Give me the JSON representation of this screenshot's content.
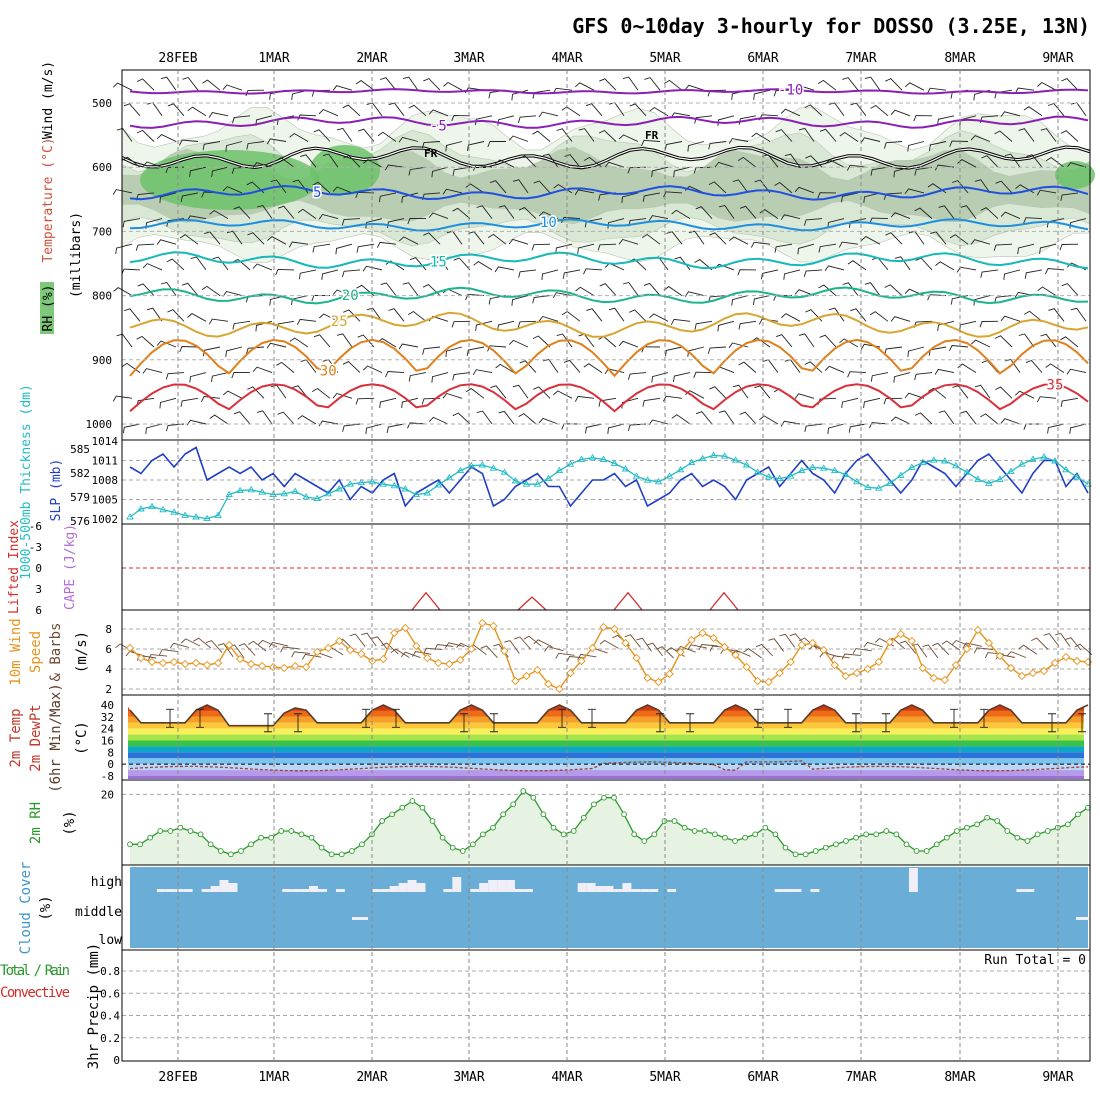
{
  "title": "GFS 0~10day 3-hourly for DOSSO (3.25E, 13N)",
  "dates": [
    "28FEB",
    "1MAR",
    "2MAR",
    "3MAR",
    "4MAR",
    "5MAR",
    "6MAR",
    "7MAR",
    "8MAR",
    "9MAR"
  ],
  "colors": {
    "slp": "#1f3fc7",
    "thickness": "#22bcc4",
    "lifted_index": "#d62c2c",
    "cape": "#b56cd6",
    "wind": "#e8931c",
    "barb": "#6e4a32",
    "rh2m": "#2c9a2c",
    "rh_fill": "#e6f2e2",
    "cloud": "#6aadd6",
    "cloud_bar": "#f0eef6",
    "temp_line": "#5a3b2a",
    "dewpt": "#a04040"
  },
  "panels": {
    "upper": {
      "ylabel_rh": "RH (%)",
      "ylabel_temp": "Temperature (°C)",
      "ylabel_wind": "Wind (m/s)",
      "ylabel_mb": "(millibars)",
      "yticks": [
        500,
        600,
        700,
        800,
        900,
        1000
      ],
      "freeze_label": "FR",
      "temp_contours": [
        {
          "label": "-10",
          "color": "#8a1fb5",
          "base": 482,
          "amp": 4
        },
        {
          "label": "-5",
          "color": "#8a1fb5",
          "base": 530,
          "amp": 10
        },
        {
          "label": "5",
          "color": "#2050e0",
          "base": 640,
          "amp": 12
        },
        {
          "label": "10",
          "color": "#1e8fe0",
          "base": 690,
          "amp": 10
        },
        {
          "label": "15",
          "color": "#15b9b9",
          "base": 745,
          "amp": 14
        },
        {
          "label": "20",
          "color": "#1ab58e",
          "base": 800,
          "amp": 14
        },
        {
          "label": "25",
          "color": "#d8a531",
          "base": 845,
          "amp": 22
        },
        {
          "label": "30",
          "color": "#e0801c",
          "base": 905,
          "amp": 40
        },
        {
          "label": "35",
          "color": "#d9303c",
          "base": 965,
          "amp": 30
        }
      ]
    },
    "slp": {
      "ylabel_thick": "1000-500mb Thickness (dm)",
      "ylabel_slp": "SLP (mb)",
      "left_ticks": [
        "585",
        "582",
        "579",
        "576"
      ],
      "right_ticks": [
        "1014",
        "1011",
        "1008",
        "1005",
        "1002"
      ],
      "slp_values": [
        1010,
        1009,
        1011,
        1012,
        1010,
        1012,
        1013,
        1008,
        1009,
        1010,
        1009,
        1010,
        1008,
        1009,
        1007,
        1009,
        1008,
        1007,
        1006,
        1008,
        1005,
        1007,
        1006,
        1008,
        1009,
        1004,
        1006,
        1007,
        1008,
        1006,
        1008,
        1010,
        1009,
        1004,
        1005,
        1007,
        1008,
        1009,
        1007,
        1007,
        1004,
        1006,
        1008,
        1008,
        1009,
        1007,
        1008,
        1004,
        1005,
        1006,
        1008,
        1009,
        1007,
        1008,
        1007,
        1005,
        1008,
        1009,
        1010,
        1007,
        1009,
        1011,
        1009,
        1008,
        1006,
        1009,
        1011,
        1012,
        1010,
        1008,
        1006,
        1008,
        1011,
        1010,
        1009,
        1007,
        1009,
        1011,
        1012,
        1010,
        1008,
        1006,
        1009,
        1011,
        1011,
        1007,
        1009,
        1006
      ],
      "thick_values": [
        576.5,
        577.5,
        577.8,
        577.4,
        577.1,
        576.7,
        576.5,
        576.3,
        576.7,
        579.3,
        579.8,
        579.9,
        579.6,
        579.3,
        579.4,
        579.7,
        579.0,
        578.8,
        579.4,
        580.0,
        580.6,
        580.8,
        580.9,
        580.6,
        580.4,
        580.0,
        579.3,
        579.5,
        580.5,
        581.4,
        582.3,
        582.9,
        583.0,
        582.6,
        582.1,
        581.0,
        580.6,
        580.6,
        581.3,
        582.3,
        583.1,
        583.7,
        583.9,
        583.7,
        583.2,
        582.5,
        581.6,
        581.1,
        580.9,
        581.6,
        582.4,
        583.3,
        583.8,
        584.2,
        584.1,
        583.6,
        583.0,
        582.1,
        581.5,
        581.3,
        581.6,
        582.3,
        582.7,
        582.6,
        582.3,
        581.8,
        580.9,
        580.2,
        580.1,
        580.7,
        581.7,
        582.7,
        583.3,
        583.6,
        583.5,
        582.9,
        582.1,
        581.2,
        580.7,
        581.2,
        582.2,
        583.1,
        583.7,
        584.0,
        583.5,
        582.4,
        581.5,
        580.6
      ]
    },
    "cape": {
      "ylabel_li": "Lifted Index",
      "ylabel_cape": "CAPE (J/kg)",
      "ticks": [
        "-6",
        "-3",
        "0",
        "3",
        "6"
      ]
    },
    "wind10m": {
      "ylabel_a": "10m Wind",
      "ylabel_b": "Speed",
      "ylabel_c": "(m/s)",
      "ylabel_d": "& Barbs",
      "ticks": [
        "8",
        "6",
        "4",
        "2"
      ],
      "speed_values": [
        6.1,
        5.1,
        4.7,
        4.6,
        4.7,
        4.5,
        4.6,
        4.4,
        4.6,
        6.4,
        5.0,
        4.5,
        4.3,
        4.2,
        4.1,
        4.3,
        4.2,
        5.7,
        6.1,
        6.8,
        5.9,
        5.5,
        4.8,
        5.0,
        7.6,
        8.1,
        6.3,
        5.1,
        4.6,
        4.5,
        4.9,
        6.0,
        8.6,
        8.3,
        5.8,
        2.8,
        3.3,
        3.9,
        2.5,
        2.0,
        3.6,
        4.8,
        6.1,
        8.2,
        8.0,
        6.6,
        5.1,
        3.1,
        2.7,
        3.5,
        5.7,
        6.9,
        7.6,
        7.1,
        6.2,
        5.4,
        4.2,
        2.8,
        2.7,
        3.6,
        4.7,
        6.4,
        6.6,
        5.9,
        4.4,
        3.3,
        3.6,
        4.0,
        4.7,
        6.7,
        7.5,
        6.8,
        4.1,
        3.1,
        2.9,
        4.4,
        6.0,
        7.9,
        6.6,
        5.3,
        4.1,
        3.3,
        3.6,
        3.8,
        4.6,
        5.2,
        4.8,
        4.7
      ]
    },
    "temp2m": {
      "ylabel_a": "2m Temp",
      "ylabel_b": "2m DewPt",
      "ylabel_c": "(6hr Min/Max)",
      "ylabel_d": "(°C)",
      "ticks": [
        "40",
        "32",
        "24",
        "16",
        "8",
        "0",
        "-8"
      ],
      "color_bands": [
        {
          "from": 40,
          "to": 44,
          "color": "#a00f14"
        },
        {
          "from": 36,
          "to": 40,
          "color": "#d23a10"
        },
        {
          "from": 32,
          "to": 36,
          "color": "#ee6a14"
        },
        {
          "from": 28,
          "to": 32,
          "color": "#f59e28"
        },
        {
          "from": 24,
          "to": 28,
          "color": "#fbc83a"
        },
        {
          "from": 20,
          "to": 24,
          "color": "#f8f05a"
        },
        {
          "from": 16,
          "to": 20,
          "color": "#a7e34a"
        },
        {
          "from": 12,
          "to": 16,
          "color": "#39c24a"
        },
        {
          "from": 8,
          "to": 12,
          "color": "#0ea6c8"
        },
        {
          "from": 4,
          "to": 8,
          "color": "#2c73d8"
        },
        {
          "from": 0,
          "to": 4,
          "color": "#7cc4f0"
        },
        {
          "from": -4,
          "to": 0,
          "color": "#bcd6f6"
        },
        {
          "from": -8,
          "to": -4,
          "color": "#b49ae8"
        },
        {
          "from": -12,
          "to": -8,
          "color": "#9a72d6"
        }
      ]
    },
    "rh2m": {
      "ylabel_a": "2m RH",
      "ylabel_b": "(%)",
      "ticks": [
        "20"
      ],
      "values": [
        5,
        5,
        7,
        9,
        9,
        10,
        9,
        8,
        5,
        3,
        2,
        3,
        5,
        7,
        7,
        9,
        9,
        8,
        7,
        4,
        2,
        2,
        3,
        5,
        8,
        12,
        14,
        16,
        18,
        16,
        12,
        7,
        4,
        3,
        5,
        8,
        10,
        14,
        17,
        21,
        19,
        14,
        10,
        8,
        9,
        13,
        17,
        19,
        19,
        14,
        8,
        6,
        8,
        12,
        12,
        10,
        9,
        9,
        8,
        7,
        6,
        7,
        8,
        10,
        8,
        4,
        2,
        2,
        3,
        4,
        5,
        6,
        7,
        8,
        8,
        9,
        8,
        5,
        3,
        3,
        5,
        7,
        9,
        10,
        11,
        13,
        12,
        9,
        7,
        6,
        8,
        9,
        10,
        11,
        14,
        16
      ]
    },
    "cloud": {
      "ylabel_a": "Cloud Cover",
      "ylabel_b": "(%)",
      "levels": [
        "high",
        "middle",
        "low"
      ],
      "high_bars": [
        0,
        0,
        0,
        1,
        1,
        1,
        1,
        0,
        1,
        2,
        4,
        3,
        0,
        0,
        0,
        0,
        0,
        1,
        1,
        1,
        2,
        1,
        0,
        1,
        0,
        0,
        0,
        1,
        1,
        2,
        3,
        4,
        3,
        0,
        0,
        1,
        5,
        0,
        1,
        3,
        4,
        4,
        4,
        1,
        1,
        0,
        0,
        0,
        0,
        0,
        3,
        3,
        2,
        2,
        1,
        3,
        1,
        1,
        1,
        0,
        1,
        0,
        0,
        0,
        0,
        0,
        0,
        0,
        0,
        0,
        0,
        0,
        1,
        1,
        1,
        0,
        1,
        0,
        0,
        0,
        0,
        0,
        0,
        0,
        0,
        0,
        0,
        8,
        0,
        0,
        0,
        0,
        0,
        0,
        0,
        0,
        0,
        0,
        0,
        1,
        1,
        0,
        0,
        0,
        0,
        0,
        0
      ],
      "mid_bars_note": ""
    },
    "precip": {
      "ylabel_a": "Total / Rain",
      "ylabel_b": "Convective",
      "ylabel_c": "3hr Precip (mm)",
      "ticks": [
        "0.8",
        "0.6",
        "0.4",
        "0.2",
        "0"
      ],
      "run_total": "Run Total = 0"
    }
  },
  "chart_data": [
    {
      "type": "line",
      "title": "GFS 0~10day 3-hourly for DOSSO (3.25E, 13N)",
      "x": [
        "28FEB",
        "1MAR",
        "2MAR",
        "3MAR",
        "4MAR",
        "5MAR",
        "6MAR",
        "7MAR",
        "8MAR",
        "9MAR"
      ],
      "series": [
        {
          "name": "SLP (mb)",
          "range": [
            1002,
            1014
          ]
        },
        {
          "name": "1000-500mb Thickness (dm)",
          "range": [
            576,
            585
          ]
        },
        {
          "name": "10m Wind Speed (m/s)",
          "range": [
            2,
            8.6
          ]
        },
        {
          "name": "2m Temp (°C)",
          "range": [
            22,
            42
          ]
        },
        {
          "name": "2m RH (%)",
          "range": [
            2,
            21
          ]
        }
      ],
      "precip_run_total": 0
    }
  ]
}
